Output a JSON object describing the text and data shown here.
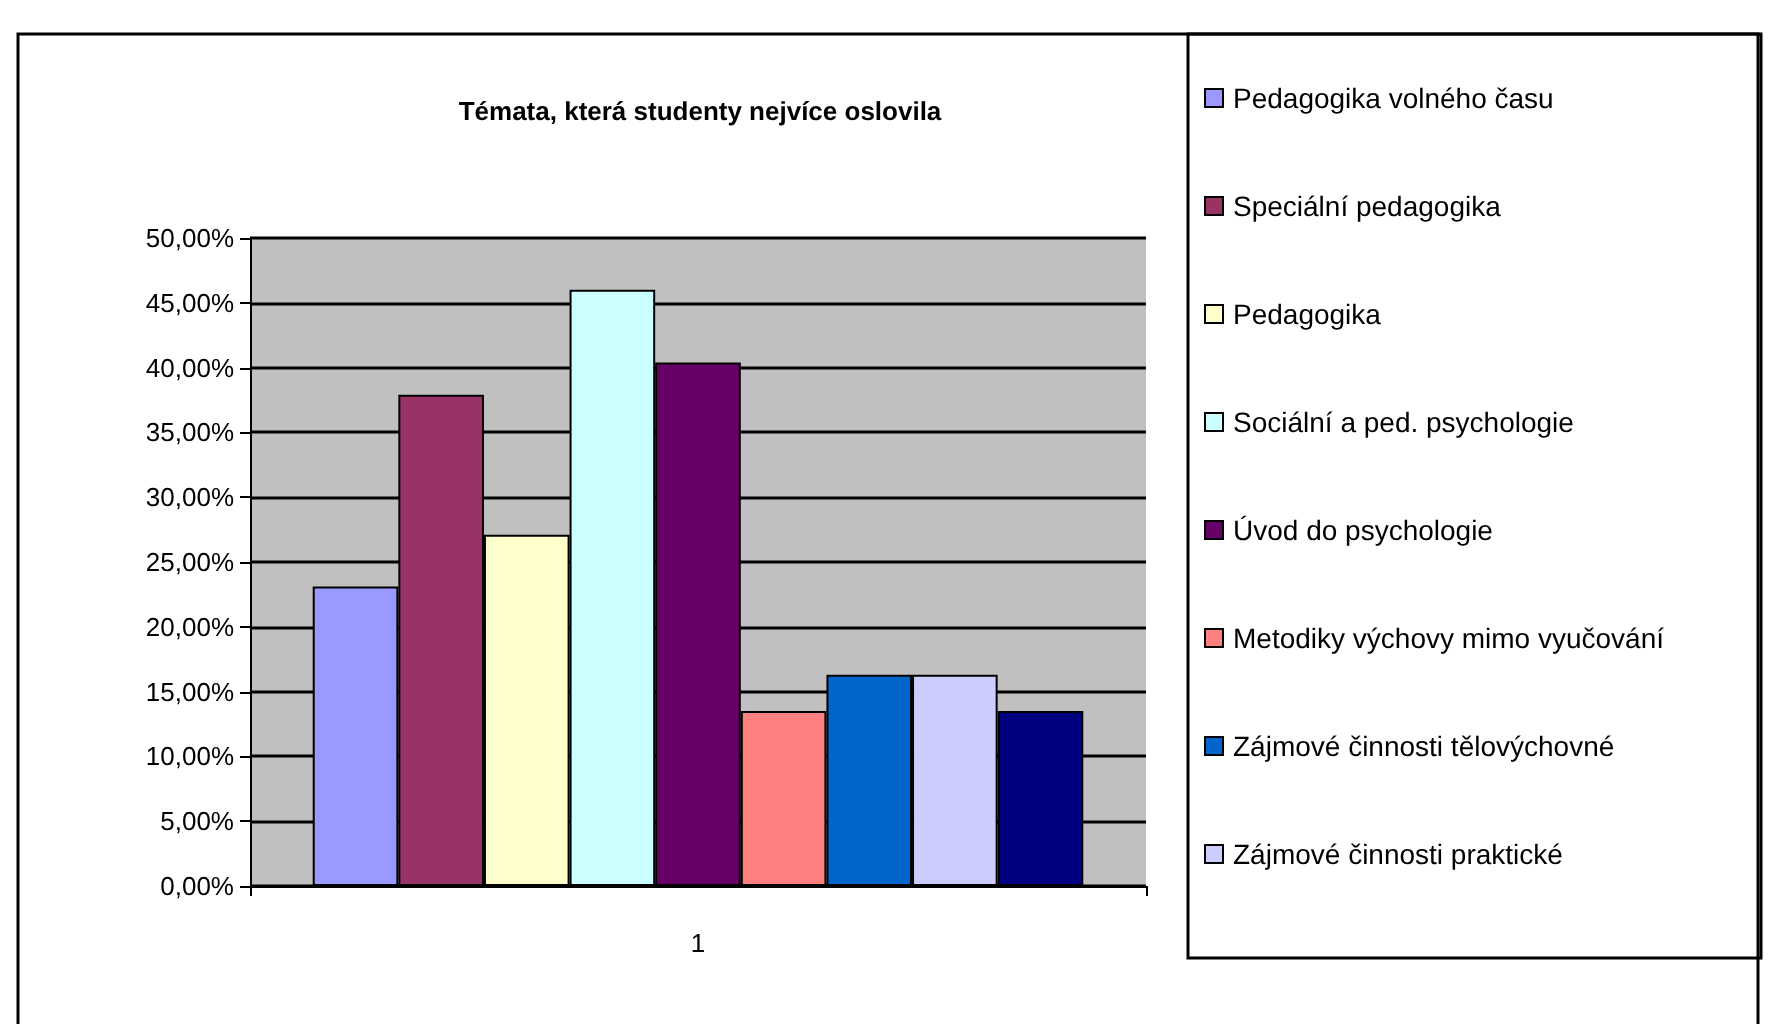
{
  "chart_data": {
    "type": "bar",
    "title": "Témata, která studenty nejvíce oslovila",
    "categories": [
      "1"
    ],
    "series": [
      {
        "name": "Pedagogika volného času",
        "color": "#9999ff",
        "values": [
          23.1
        ]
      },
      {
        "name": "Speciální pedagogika",
        "color": "#993366",
        "values": [
          37.9
        ]
      },
      {
        "name": "Pedagogika",
        "color": "#ffffcc",
        "values": [
          27.1
        ]
      },
      {
        "name": "Sociální a ped. psychologie",
        "color": "#ccffff",
        "values": [
          46.0
        ]
      },
      {
        "name": "Úvod do psychologie",
        "color": "#660066",
        "values": [
          40.4
        ]
      },
      {
        "name": "Metodiky výchovy mimo vyučování",
        "color": "#ff8080",
        "values": [
          13.5
        ]
      },
      {
        "name": "Zájmové činnosti tělovýchovné",
        "color": "#0066cc",
        "values": [
          16.3
        ]
      },
      {
        "name": "Zájmové činnosti praktické",
        "color": "#ccccff",
        "values": [
          16.3
        ]
      },
      {
        "color": "#000080",
        "values": [
          13.5
        ]
      }
    ],
    "ylim": [
      0,
      50
    ],
    "yticks": [
      {
        "value": 0,
        "label": "0,00%"
      },
      {
        "value": 5,
        "label": "5,00%"
      },
      {
        "value": 10,
        "label": "10,00%"
      },
      {
        "value": 15,
        "label": "15,00%"
      },
      {
        "value": 20,
        "label": "20,00%"
      },
      {
        "value": 25,
        "label": "25,00%"
      },
      {
        "value": 30,
        "label": "30,00%"
      },
      {
        "value": 35,
        "label": "35,00%"
      },
      {
        "value": 40,
        "label": "40,00%"
      },
      {
        "value": 45,
        "label": "45,00%"
      },
      {
        "value": 50,
        "label": "50,00%"
      }
    ],
    "grid": "y",
    "legend": "right"
  }
}
